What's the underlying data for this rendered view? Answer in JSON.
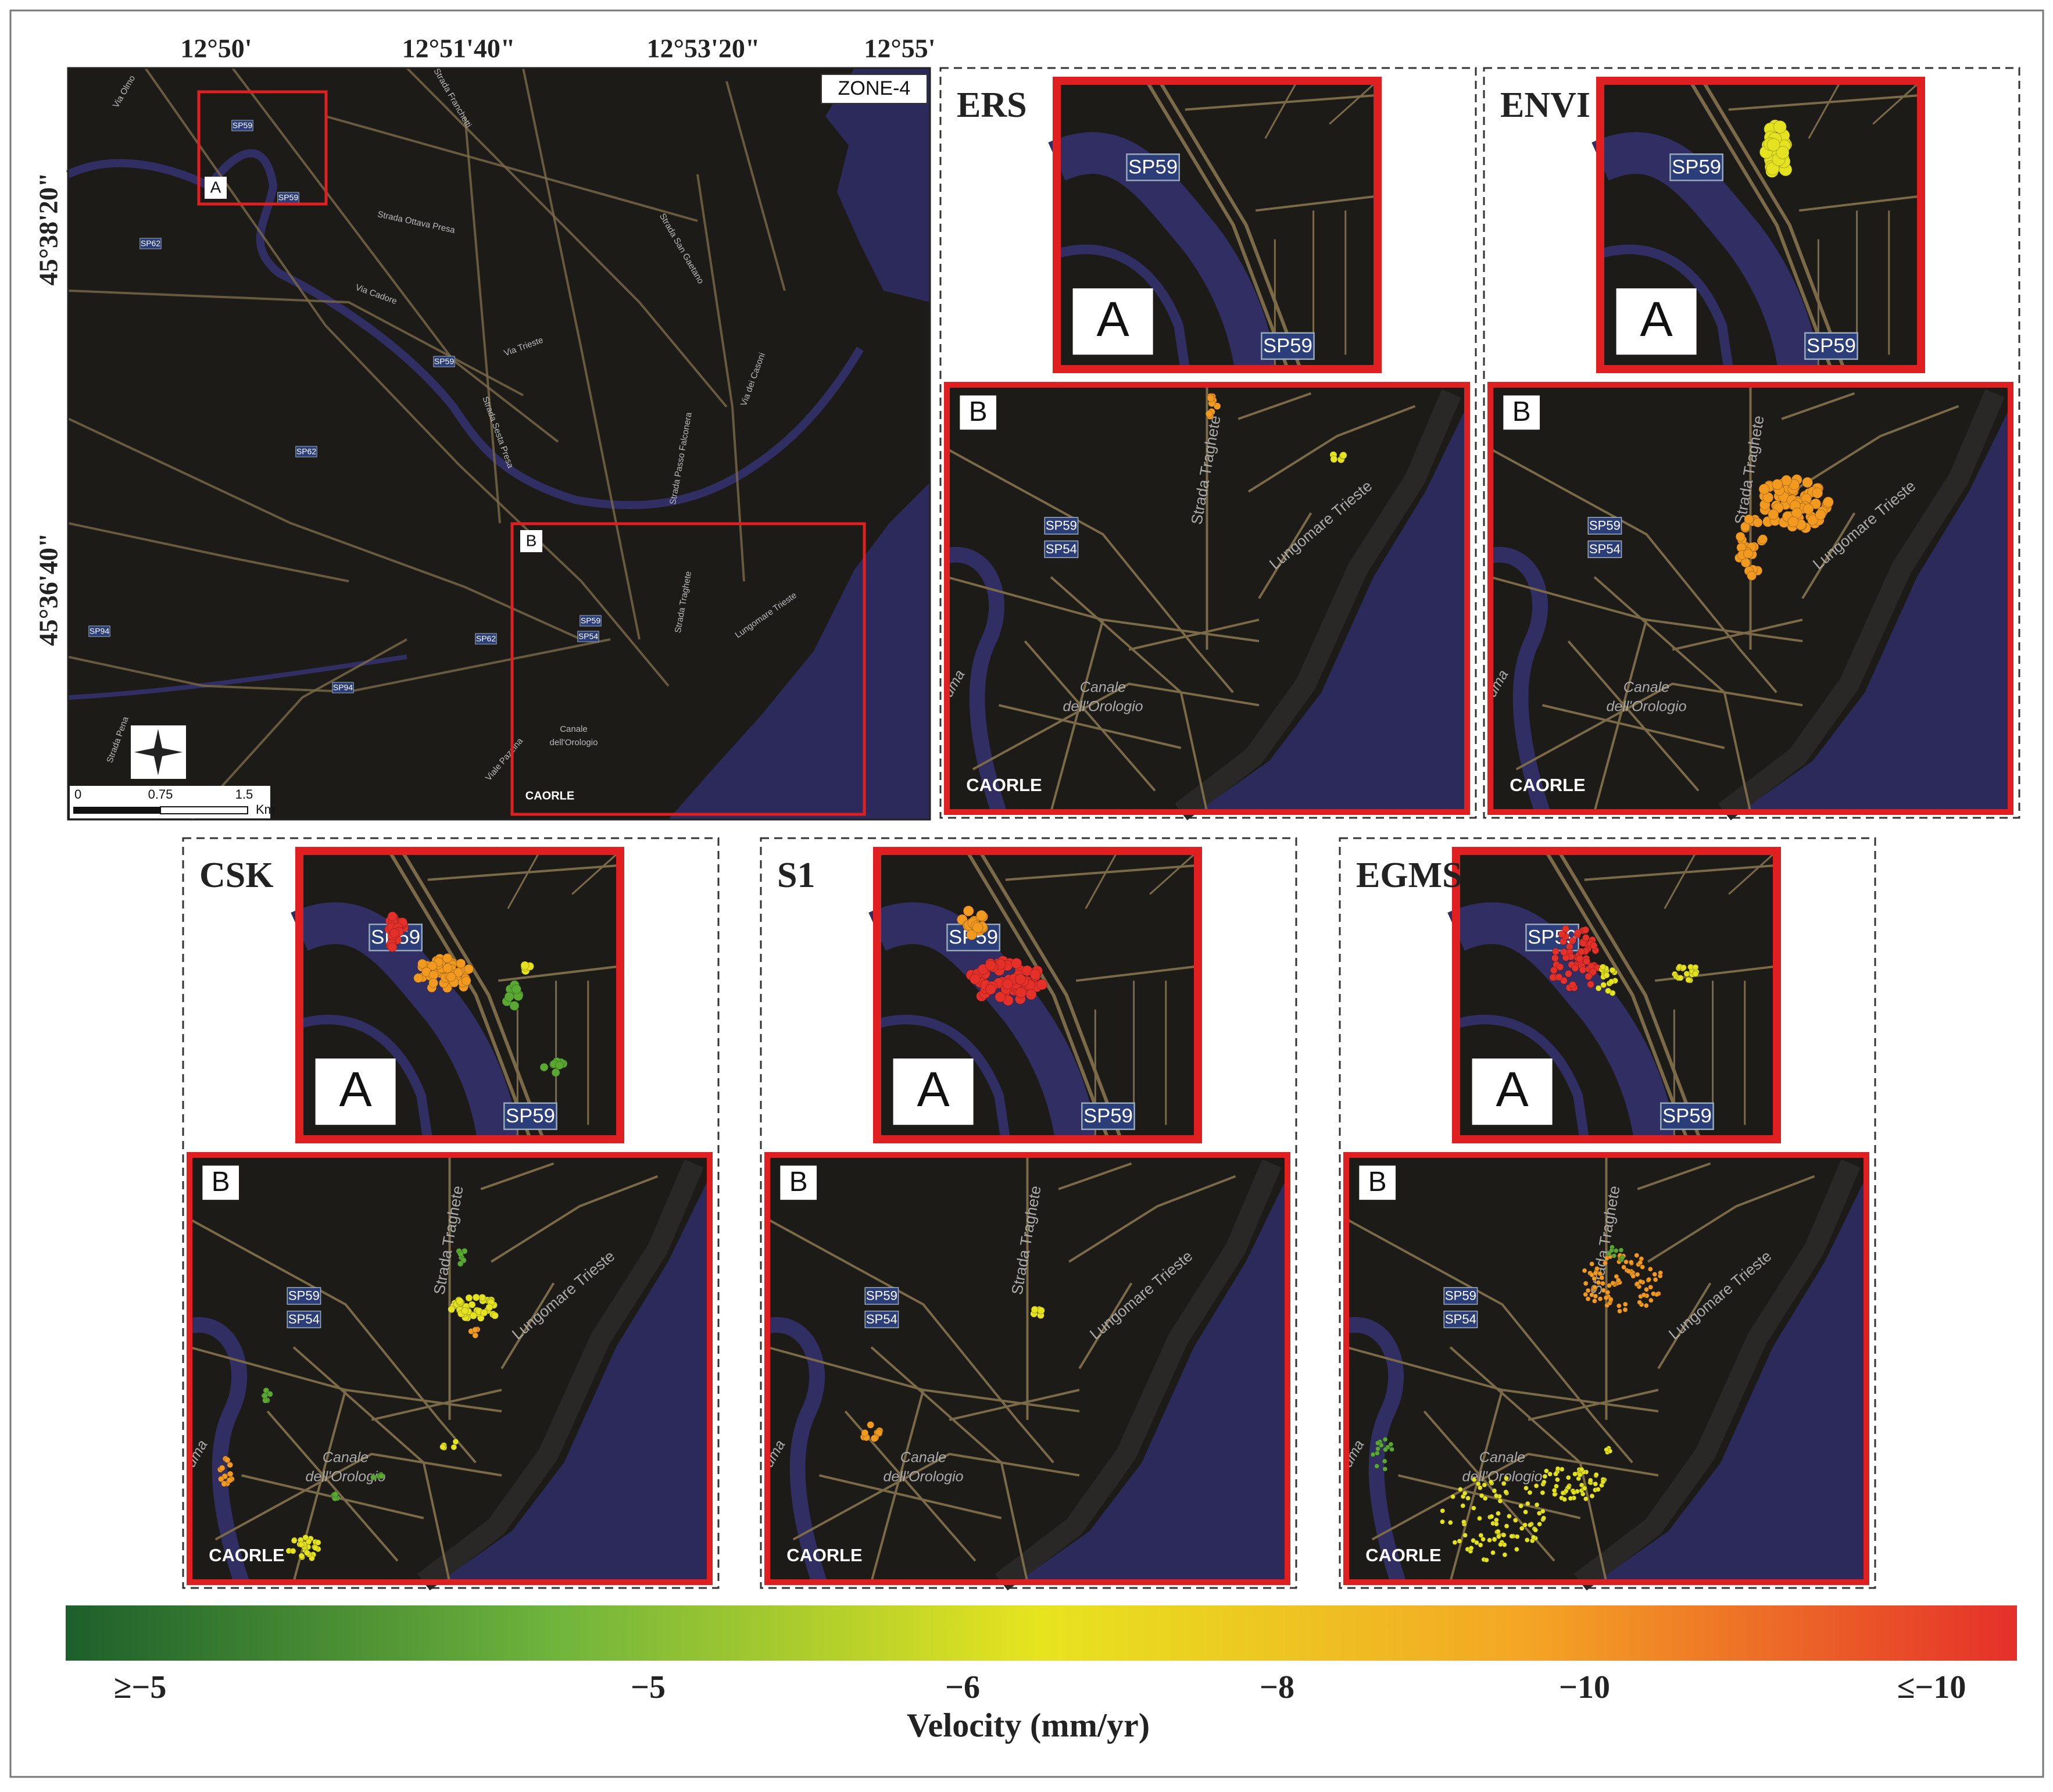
{
  "map": {
    "top_labels": [
      "12°50'",
      "12°51'40\"",
      "12°53'20\"",
      "12°55'"
    ],
    "left_labels": [
      "45°38'20\"",
      "45°36'40\""
    ],
    "zone": "ZONE-4",
    "box_a": "A",
    "box_b": "B",
    "roads": [
      "Via Olmo",
      "SP59",
      "SP59",
      "SP62",
      "Strada Ottava Presa",
      "Via Cadore",
      "SP59",
      "Via Trieste",
      "Strada San Gaetano",
      "SP62",
      "Strada Sesta Presa",
      "Strada Passo Falconera",
      "Via dei Casoni",
      "SP59",
      "SP54",
      "SP62",
      "SP94",
      "SP94",
      "Strada Traghete",
      "Lungomare Trieste",
      "Canale",
      "dell'Orologio",
      "CAORLE",
      "Strada Franchetti",
      "Viale Pazzina",
      "Strada Pena"
    ],
    "scale": [
      "0",
      "0.75",
      "1.5",
      "Km"
    ]
  },
  "inset_a": {
    "label": "A",
    "roads": [
      "SP59",
      "SP59"
    ]
  },
  "inset_b": {
    "label": "B",
    "roads": [
      "SP59",
      "SP54",
      "Strada Traghete",
      "Lungomare Trieste",
      "Canale",
      "dell'Orologio",
      "CAORLE",
      "uma"
    ]
  },
  "panels": [
    "ERS",
    "ENVI",
    "CSK",
    "S1",
    "EGMS"
  ],
  "colorbar": {
    "ticks": [
      "≥−5",
      "−5",
      "−6",
      "−8",
      "−10",
      "≤−10"
    ],
    "title": "Velocity (mm/yr)"
  }
}
